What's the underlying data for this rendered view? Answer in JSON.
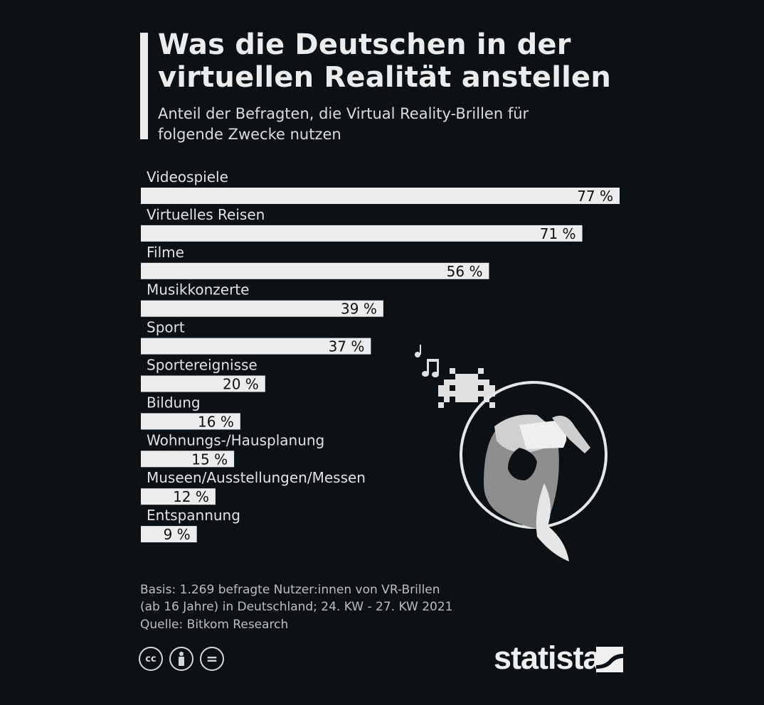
{
  "title": "Was die Deutschen in der virtuellen Realität anstellen",
  "subtitle": "Anteil der Befragten, die Virtual Reality-Brillen für folgende Zwecke nutzen",
  "chart_data": {
    "type": "bar",
    "orientation": "horizontal",
    "unit": "%",
    "categories": [
      "Videospiele",
      "Virtuelles Reisen",
      "Filme",
      "Musikkonzerte",
      "Sport",
      "Sportereignisse",
      "Bildung",
      "Wohnungs-/Hausplanung",
      "Museen/Ausstellungen/Messen",
      "Entspannung"
    ],
    "values": [
      77,
      71,
      56,
      39,
      37,
      20,
      16,
      15,
      12,
      9
    ],
    "value_labels": [
      "77 %",
      "71 %",
      "56 %",
      "39 %",
      "37 %",
      "20 %",
      "16 %",
      "15 %",
      "12 %",
      "9 %"
    ],
    "bar_color": "#ececec",
    "grid": false
  },
  "footnote": {
    "basis_line1": "Basis: 1.269 befragte Nutzer:innen von VR-Brillen",
    "basis_line2": "(ab 16 Jahre) in Deutschland; 24. KW - 27. KW 2021",
    "source": "Quelle: Bitkom Research"
  },
  "license_icons": [
    {
      "icon": "creative-commons-icon",
      "text": "cc"
    },
    {
      "icon": "attribution-person-icon",
      "text": ""
    },
    {
      "icon": "no-derivatives-icon",
      "text": "="
    }
  ],
  "brand": "statista"
}
